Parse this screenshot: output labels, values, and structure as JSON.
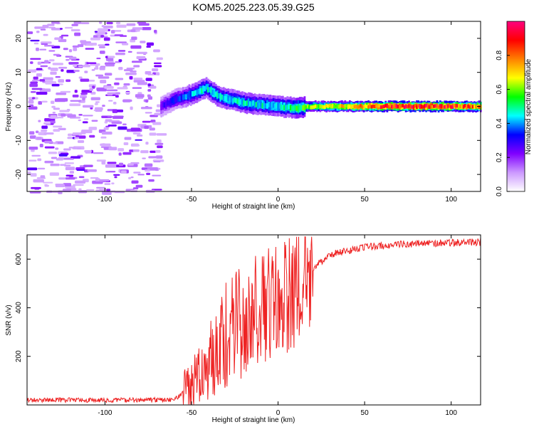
{
  "title": "KOM5.2025.223.05.39.G25",
  "chart_data": [
    {
      "type": "heatmap",
      "xlabel": "Height of straight line (km)",
      "ylabel": "Frequency (Hz)",
      "xlim": [
        -145,
        117
      ],
      "ylim": [
        -25,
        25
      ],
      "xticks": [
        -100,
        -50,
        0,
        50,
        100
      ],
      "yticks": [
        -20,
        -10,
        0,
        10,
        20
      ],
      "colorbar": {
        "label": "Normalized spectral amplitude",
        "range": [
          0,
          1
        ],
        "ticks": [
          0.0,
          0.2,
          0.4,
          0.6,
          0.8
        ],
        "colors": [
          "#ffffff",
          "#cc99ff",
          "#8000ff",
          "#0000ff",
          "#00ffff",
          "#00ff00",
          "#ffff00",
          "#ff8000",
          "#ff0000",
          "#ff0080"
        ]
      },
      "ridge": {
        "description_points": [
          [
            -68,
            0
          ],
          [
            -60,
            2
          ],
          [
            -50,
            3.5
          ],
          [
            -42,
            5.5
          ],
          [
            -35,
            3
          ],
          [
            -28,
            2
          ],
          [
            -20,
            1
          ],
          [
            -10,
            0.5
          ],
          [
            0,
            0
          ],
          [
            10,
            -0.5
          ],
          [
            20,
            0
          ],
          [
            50,
            0
          ],
          [
            80,
            0
          ],
          [
            117,
            0
          ]
        ],
        "amplitude": [
          [
            -68,
            0.25
          ],
          [
            -45,
            0.45
          ],
          [
            -20,
            0.45
          ],
          [
            0,
            0.45
          ],
          [
            20,
            0.6
          ],
          [
            40,
            0.7
          ],
          [
            60,
            0.85
          ],
          [
            80,
            0.9
          ],
          [
            100,
            0.85
          ],
          [
            117,
            0.75
          ]
        ]
      }
    },
    {
      "type": "line",
      "xlabel": "Height of straight line (km)",
      "ylabel": "SNR (v/v)",
      "xlim": [
        -145,
        117
      ],
      "ylim": [
        0,
        700
      ],
      "xticks": [
        -100,
        -50,
        0,
        50,
        100
      ],
      "yticks": [
        200,
        400,
        600
      ],
      "color": "#ee2222",
      "trend": [
        [
          -145,
          20
        ],
        [
          -60,
          20
        ],
        [
          -50,
          80
        ],
        [
          -40,
          180
        ],
        [
          -30,
          280
        ],
        [
          -20,
          340
        ],
        [
          -10,
          400
        ],
        [
          0,
          430
        ],
        [
          10,
          470
        ],
        [
          20,
          560
        ],
        [
          30,
          620
        ],
        [
          50,
          650
        ],
        [
          80,
          665
        ],
        [
          117,
          670
        ]
      ]
    }
  ]
}
